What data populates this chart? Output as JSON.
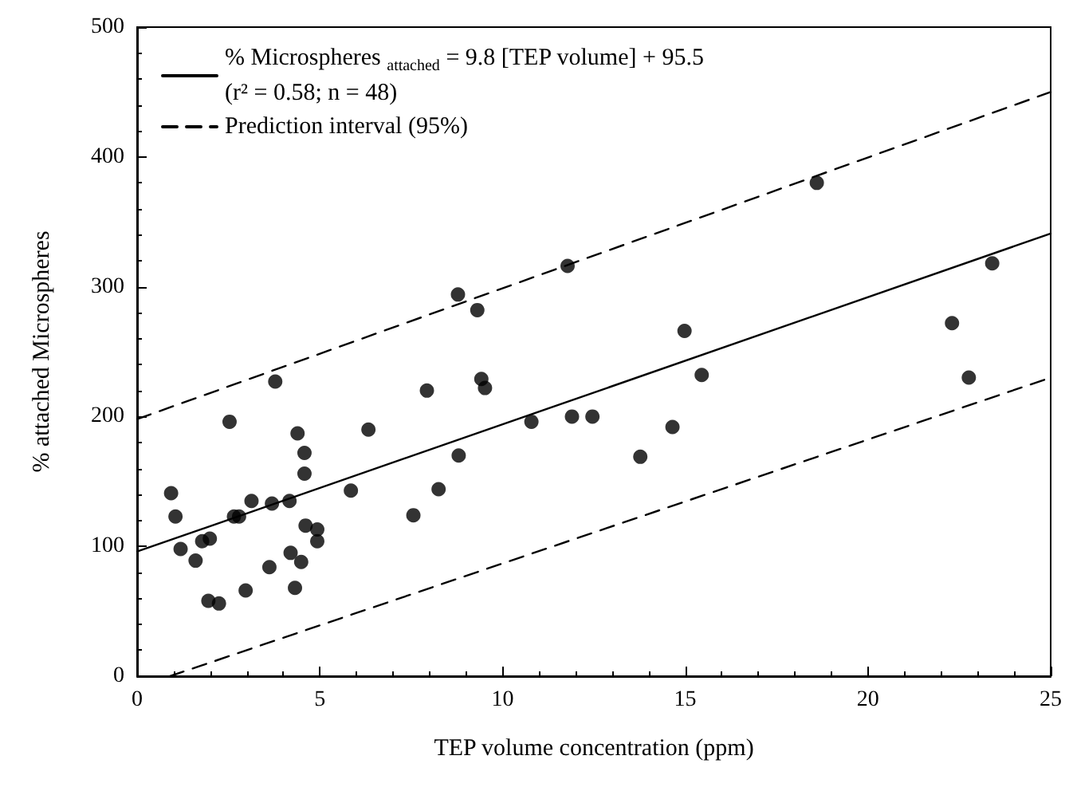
{
  "chart_data": {
    "type": "scatter",
    "xlabel": "TEP volume concentration (ppm)",
    "ylabel": "% attached Microspheres",
    "xlim": [
      0,
      25
    ],
    "xticks": [
      0,
      5,
      10,
      15,
      20,
      25
    ],
    "ylim": [
      0,
      500
    ],
    "yticks": [
      0,
      100,
      200,
      300,
      400,
      500
    ],
    "grid": false,
    "legend": "top left",
    "marker": "circle",
    "series": [
      {
        "color": "#000000",
        "x": [
          0.93,
          1.05,
          1.19,
          1.6,
          1.78,
          1.99,
          1.95,
          2.24,
          2.53,
          2.65,
          2.79,
          2.97,
          3.13,
          3.62,
          3.69,
          3.78,
          4.17,
          4.2,
          4.32,
          4.39,
          4.49,
          4.58,
          4.58,
          4.61,
          4.93,
          4.93,
          5.85,
          6.33,
          7.56,
          8.25,
          8.8,
          7.93,
          8.78,
          9.31,
          9.42,
          9.52,
          10.79,
          11.78,
          11.9,
          12.46,
          13.77,
          14.65,
          14.98,
          15.45,
          18.6,
          22.3,
          22.76,
          23.4
        ],
        "values": [
          141,
          123,
          98,
          89,
          104,
          106,
          58,
          56,
          196,
          123,
          123,
          66,
          135,
          84,
          133,
          227,
          135,
          95,
          68,
          187,
          88,
          172,
          156,
          116,
          113,
          104,
          143,
          190,
          124,
          144,
          170,
          220,
          294,
          282,
          229,
          222,
          196,
          316,
          200,
          200,
          169,
          192,
          266,
          232,
          380,
          272,
          230,
          318
        ]
      },
      {
        "type": "line",
        "name": "% Microspheres $_{attached}$ = 9.8 [TEP volume] + 95.5\n(r² = 0.58; n = 48)",
        "color": "#000000",
        "line_style": "solid",
        "marker": "none",
        "x": [
          0,
          25
        ],
        "values": [
          96,
          341
        ]
      },
      {
        "type": "line",
        "name": "Prediction interval (95%)",
        "color": "#000000",
        "line_style": "dashed",
        "marker": "none",
        "x": [
          0,
          25
        ],
        "values": [
          198,
          450
        ]
      },
      {
        "type": "line",
        "color": "#000000",
        "line_style": "dashed",
        "marker": "none",
        "x": [
          0.9,
          25
        ],
        "values": [
          0,
          230
        ]
      }
    ]
  }
}
